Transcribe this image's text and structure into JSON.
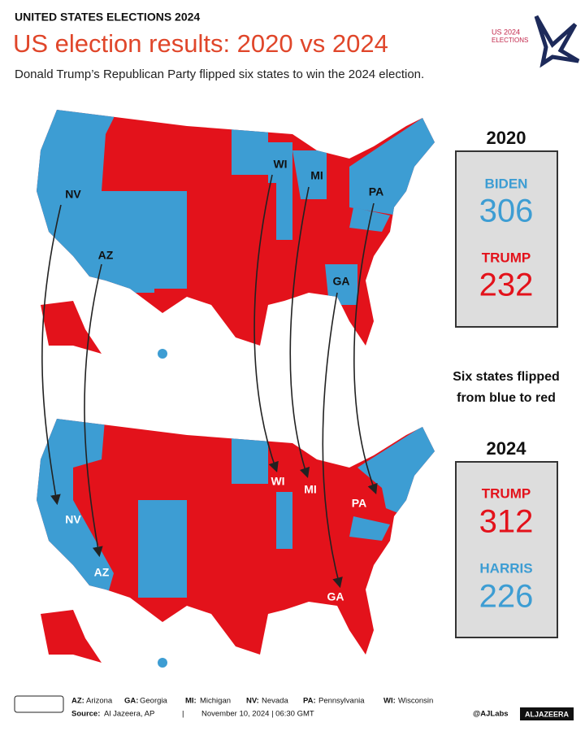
{
  "header": {
    "kicker": "UNITED STATES ELECTIONS 2024",
    "title": "US election results: 2020 vs 2024",
    "subtitle": "Donald Trump’s Republican Party flipped six states to win the 2024 election."
  },
  "logo": {
    "line1": "US 2024",
    "line2": "ELECTIONS"
  },
  "maps": [
    {
      "labels": [
        "NV",
        "AZ",
        "WI",
        "MI",
        "PA",
        "GA"
      ]
    },
    {
      "labels": [
        "NV",
        "AZ",
        "WI",
        "MI",
        "PA",
        "GA"
      ]
    }
  ],
  "results": [
    {
      "year": "2020",
      "candidates": [
        {
          "name": "BIDEN",
          "votes": 306
        },
        {
          "name": "TRUMP",
          "votes": 232
        }
      ]
    },
    {
      "year": "2024",
      "candidates": [
        {
          "name": "TRUMP",
          "votes": 312
        },
        {
          "name": "HARRIS",
          "votes": 226
        }
      ]
    }
  ],
  "note": [
    "Six states flipped",
    "from blue to red"
  ],
  "footer": {
    "legend": [
      {
        "code": "AZ:",
        "name": "Arizona"
      },
      {
        "code": "GA:",
        "name": "Georgia"
      },
      {
        "code": "MI:",
        "name": "Michigan"
      },
      {
        "code": "NV:",
        "name": "Nevada"
      },
      {
        "code": "PA:",
        "name": "Pennsylvania"
      },
      {
        "code": "WI:",
        "name": "Wisconsin"
      }
    ],
    "source_label": "Source:",
    "source": "Al Jazeera, AP",
    "separator": "|",
    "date": "November 10, 2024 | 06:30 GMT",
    "handle": "@AJLabs",
    "brand": "ALJAZEERA"
  }
}
